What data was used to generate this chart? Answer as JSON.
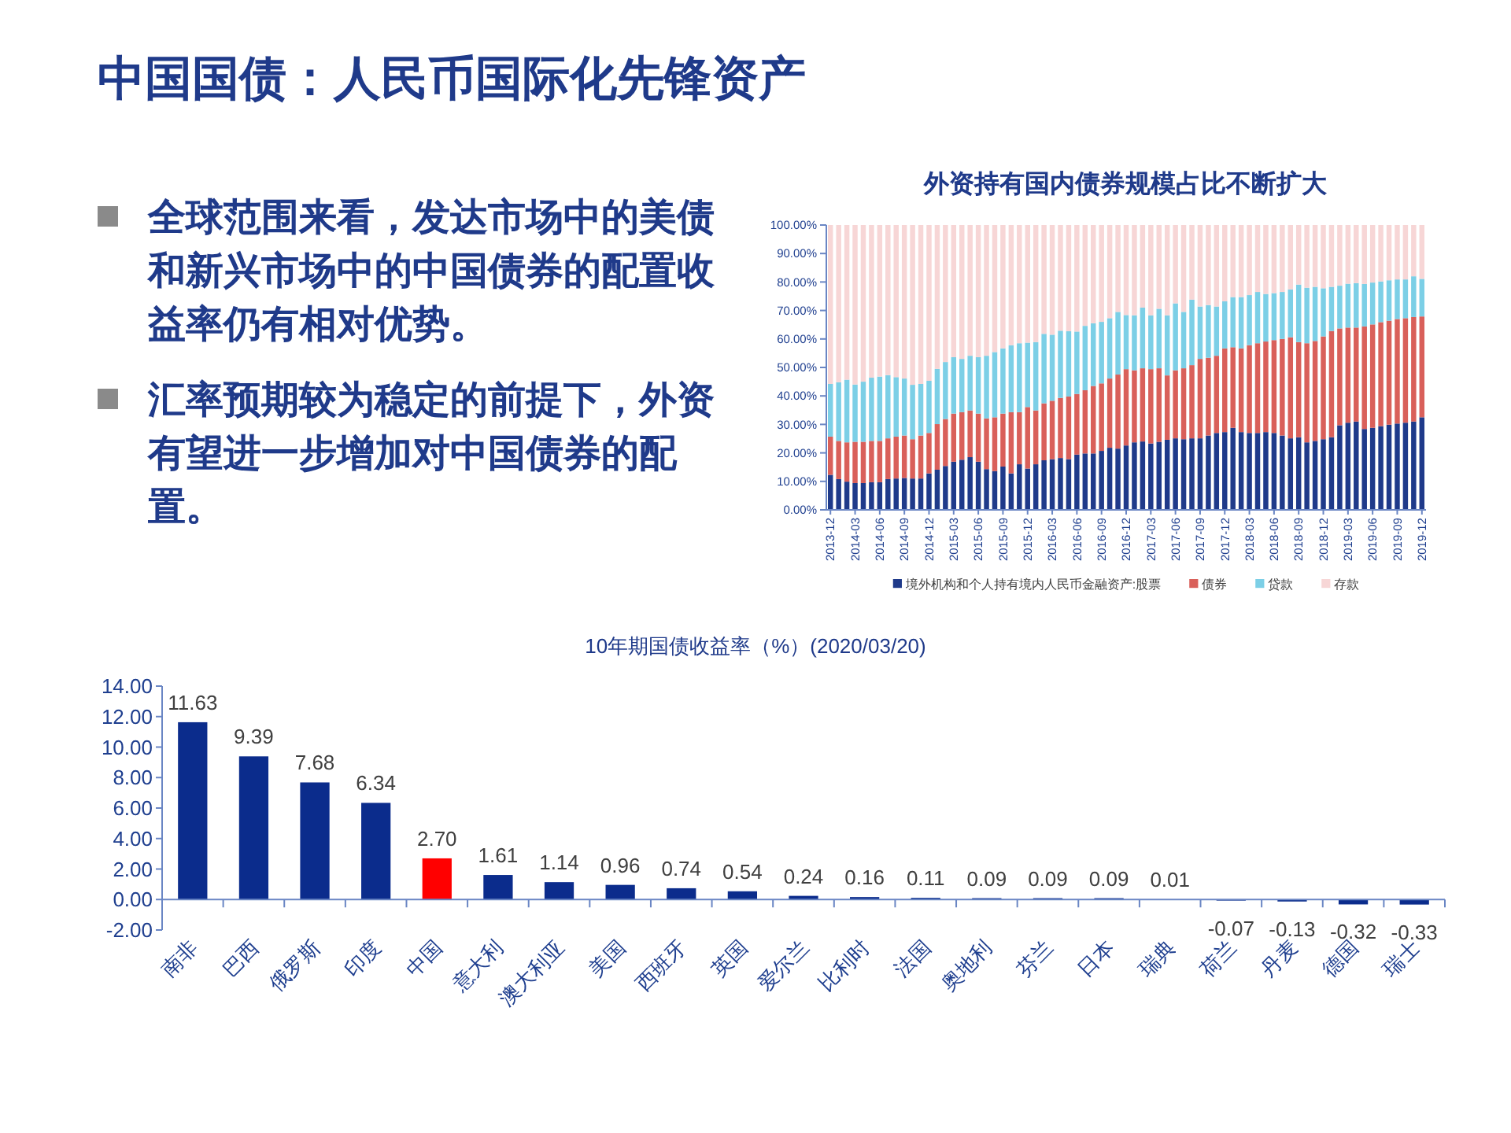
{
  "chart_data": [
    {
      "type": "other",
      "title": "中国国债：人民币国际化先锋资产",
      "annotations": [
        "全球范围来看，发达市场中的美债和新兴市场中的中国债券的配置收益率仍有相对优势。",
        "汇率预期较为稳定的前提下，外资有望进一步增加对中国债券的配置。"
      ]
    },
    {
      "type": "bar",
      "title": "外资持有国内债券规模占比不断扩大",
      "stacked": true,
      "legend": "bottom",
      "categories": [
        "2013-12",
        null,
        null,
        "2014-03",
        null,
        null,
        "2014-06",
        null,
        null,
        "2014-09",
        null,
        null,
        "2014-12",
        null,
        null,
        "2015-03",
        null,
        null,
        "2015-06",
        null,
        null,
        "2015-09",
        null,
        null,
        "2015-12",
        null,
        null,
        "2016-03",
        null,
        null,
        "2016-06",
        null,
        null,
        "2016-09",
        null,
        null,
        "2016-12",
        null,
        null,
        "2017-03",
        null,
        null,
        "2017-06",
        null,
        null,
        "2017-09",
        null,
        null,
        "2017-12",
        null,
        null,
        "2018-03",
        null,
        null,
        "2018-06",
        null,
        null,
        "2018-09",
        null,
        null,
        "2018-12",
        null,
        null,
        "2019-03",
        null,
        null,
        "2019-06",
        null,
        null,
        "2019-09",
        null,
        null,
        "2019-12"
      ],
      "ylim": [
        0,
        100
      ],
      "yticks": [
        {
          "value": 0,
          "label": "0.00%"
        },
        {
          "value": 10,
          "label": "10.00%"
        },
        {
          "value": 20,
          "label": "20.00%"
        },
        {
          "value": 30,
          "label": "30.00%"
        },
        {
          "value": 40,
          "label": "40.00%"
        },
        {
          "value": 50,
          "label": "50.00%"
        },
        {
          "value": 60,
          "label": "60.00%"
        },
        {
          "value": 70,
          "label": "70.00%"
        },
        {
          "value": 80,
          "label": "80.00%"
        },
        {
          "value": 90,
          "label": "90.00%"
        },
        {
          "value": 100,
          "label": "100.00%"
        }
      ],
      "series": [
        {
          "name": "境外机构和个人持有境内人民币金融资产:股票",
          "color": "#1f3a8a",
          "values": [
            12.3,
            10.8,
            9.9,
            9.4,
            9.4,
            9.7,
            9.7,
            10.8,
            11.0,
            11.2,
            11.0,
            11.0,
            12.8,
            14.1,
            15.4,
            16.9,
            17.6,
            18.5,
            16.9,
            14.3,
            13.6,
            15.2,
            12.8,
            16.0,
            14.5,
            16.0,
            17.4,
            17.8,
            18.2,
            17.8,
            19.4,
            19.8,
            19.8,
            20.7,
            21.8,
            21.5,
            22.6,
            23.7,
            24.0,
            23.3,
            23.9,
            24.6,
            25.1,
            24.8,
            25.1,
            25.1,
            26.1,
            27.0,
            27.3,
            28.8,
            27.3,
            27.0,
            27.0,
            27.3,
            27.0,
            26.1,
            25.1,
            25.5,
            23.7,
            24.2,
            24.8,
            25.5,
            29.7,
            30.6,
            31.0,
            28.4,
            28.8,
            29.4,
            29.9,
            30.3,
            30.6,
            31.0,
            32.5
          ]
        },
        {
          "name": "债券",
          "color": "#d9605a",
          "values": [
            13.4,
            13.4,
            13.8,
            14.5,
            14.5,
            14.5,
            14.5,
            14.3,
            14.7,
            14.9,
            13.8,
            15.1,
            14.2,
            16.0,
            16.5,
            16.9,
            16.7,
            16.4,
            16.9,
            17.8,
            18.9,
            18.6,
            21.5,
            18.3,
            21.6,
            18.9,
            20.0,
            20.5,
            21.1,
            22.0,
            21.3,
            22.2,
            23.7,
            23.7,
            24.3,
            26.0,
            26.8,
            25.3,
            25.7,
            26.1,
            25.8,
            22.6,
            23.9,
            24.9,
            25.7,
            27.9,
            27.3,
            27.1,
            29.4,
            28.3,
            29.4,
            30.8,
            31.5,
            31.8,
            32.6,
            33.9,
            35.5,
            33.4,
            34.8,
            35.1,
            36.1,
            37.3,
            34.0,
            33.4,
            33.0,
            36.0,
            36.3,
            36.5,
            36.5,
            36.7,
            36.7,
            36.7,
            35.4
          ]
        },
        {
          "name": "贷款",
          "color": "#7ccfe6",
          "values": [
            18.5,
            20.6,
            22.0,
            20.1,
            21.1,
            22.2,
            22.6,
            22.2,
            20.9,
            20.0,
            19.1,
            18.1,
            18.3,
            19.4,
            20.0,
            19.8,
            18.7,
            19.2,
            19.8,
            22.0,
            22.9,
            22.9,
            23.5,
            24.2,
            22.6,
            24.0,
            24.4,
            23.2,
            23.6,
            22.9,
            21.9,
            22.6,
            22.0,
            21.6,
            21.2,
            22.0,
            19.0,
            19.3,
            21.3,
            18.9,
            20.9,
            21.1,
            23.5,
            19.8,
            23.0,
            18.4,
            18.5,
            17.3,
            16.5,
            17.6,
            18.0,
            17.6,
            18.0,
            16.7,
            16.5,
            16.5,
            16.8,
            20.2,
            19.5,
            19.0,
            16.9,
            15.5,
            15.0,
            15.4,
            15.6,
            14.9,
            14.7,
            14.3,
            14.2,
            13.9,
            13.6,
            14.3,
            13.2
          ]
        },
        {
          "name": "存款",
          "color": "#f7d6d6",
          "values": [
            55.8,
            55.2,
            54.3,
            56.0,
            55.0,
            53.6,
            53.2,
            52.7,
            53.4,
            53.9,
            56.1,
            55.8,
            54.7,
            50.5,
            48.1,
            46.4,
            47.0,
            45.9,
            46.4,
            45.9,
            44.6,
            43.3,
            42.2,
            41.5,
            41.3,
            41.1,
            38.2,
            38.5,
            37.1,
            37.3,
            37.4,
            35.4,
            34.5,
            34.0,
            32.7,
            30.5,
            31.6,
            31.7,
            29.0,
            31.7,
            29.4,
            31.7,
            27.5,
            30.5,
            26.2,
            28.6,
            28.1,
            28.6,
            26.8,
            25.3,
            25.3,
            24.6,
            23.5,
            24.2,
            23.9,
            23.5,
            22.6,
            20.9,
            22.0,
            21.7,
            22.2,
            21.7,
            21.3,
            20.6,
            20.4,
            20.7,
            20.2,
            19.8,
            19.4,
            19.1,
            19.1,
            18.0,
            18.9
          ]
        }
      ]
    },
    {
      "type": "bar",
      "title": "10年期国债收益率（%）(2020/03/20)",
      "categories": [
        "南非",
        "巴西",
        "俄罗斯",
        "印度",
        "中国",
        "意大利",
        "澳大利亚",
        "美国",
        "西班牙",
        "英国",
        "爱尔兰",
        "比利时",
        "法国",
        "奥地利",
        "芬兰",
        "日本",
        "瑞典",
        "荷兰",
        "丹麦",
        "德国",
        "瑞士"
      ],
      "values": [
        11.63,
        9.39,
        7.68,
        6.34,
        2.7,
        1.61,
        1.14,
        0.96,
        0.74,
        0.54,
        0.24,
        0.16,
        0.11,
        0.09,
        0.09,
        0.09,
        0.01,
        -0.07,
        -0.13,
        -0.32,
        -0.33
      ],
      "value_labels": [
        "11.63",
        "9.39",
        "7.68",
        "6.34",
        "2.70",
        "1.61",
        "1.14",
        "0.96",
        "0.74",
        "0.54",
        "0.24",
        "0.16",
        "0.11",
        "0.09",
        "0.09",
        "0.09",
        "0.01",
        "-0.07",
        "-0.13",
        "-0.32",
        "-0.33"
      ],
      "colors": [
        "#0b2c8c",
        "#0b2c8c",
        "#0b2c8c",
        "#0b2c8c",
        "#ff0000",
        "#0b2c8c",
        "#0b2c8c",
        "#0b2c8c",
        "#0b2c8c",
        "#0b2c8c",
        "#0b2c8c",
        "#0b2c8c",
        "#0b2c8c",
        "#0b2c8c",
        "#0b2c8c",
        "#0b2c8c",
        "#0b2c8c",
        "#0b2c8c",
        "#0b2c8c",
        "#0b2c8c",
        "#0b2c8c"
      ],
      "ylim": [
        -2,
        14
      ],
      "yticks": [
        {
          "value": -2,
          "label": "-2.00"
        },
        {
          "value": 0,
          "label": "0.00"
        },
        {
          "value": 2,
          "label": "2.00"
        },
        {
          "value": 4,
          "label": "4.00"
        },
        {
          "value": 6,
          "label": "6.00"
        },
        {
          "value": 8,
          "label": "8.00"
        },
        {
          "value": 10,
          "label": "10.00"
        },
        {
          "value": 12,
          "label": "12.00"
        },
        {
          "value": 14,
          "label": "14.00"
        }
      ]
    }
  ]
}
